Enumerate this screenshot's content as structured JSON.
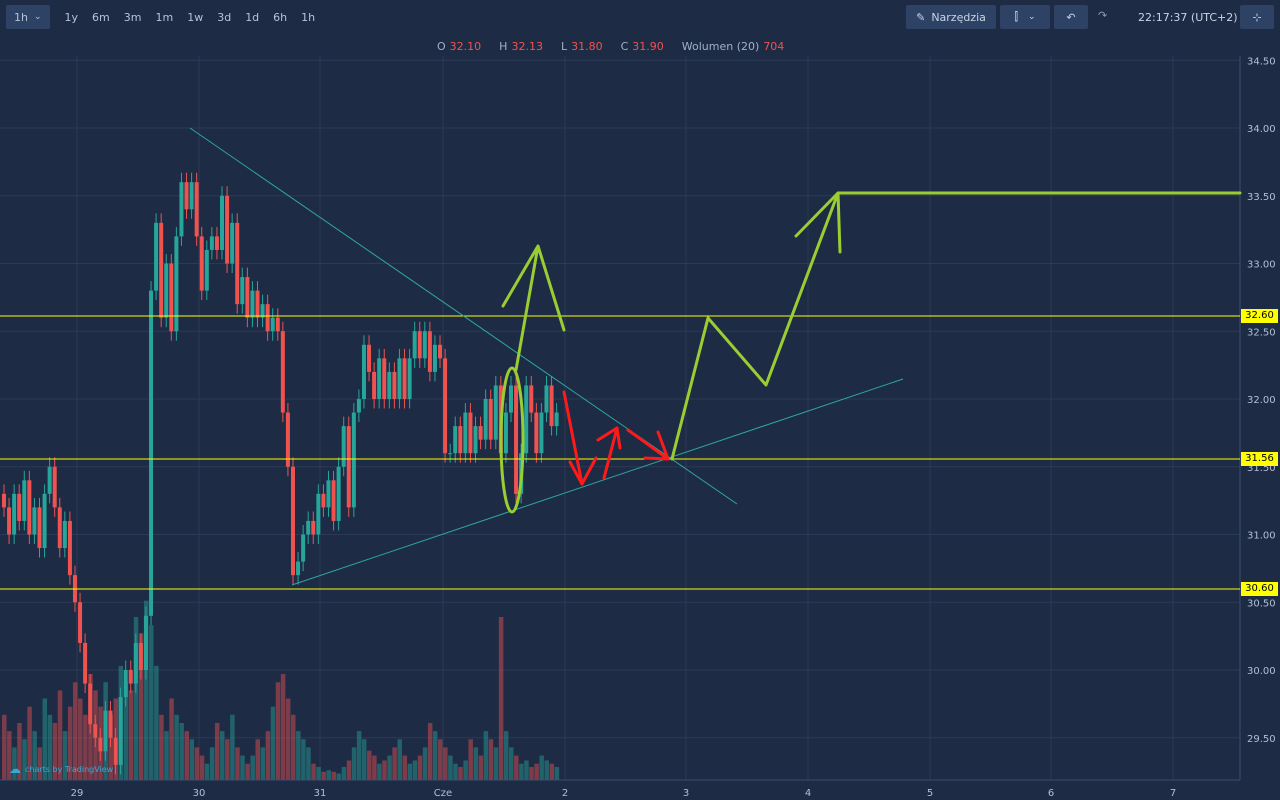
{
  "toolbar": {
    "interval": "1h",
    "ranges": [
      "1y",
      "6m",
      "3m",
      "1m",
      "1w",
      "3d",
      "1d",
      "6h",
      "1h"
    ],
    "tools_label": "Narzędzia",
    "clock": "22:17:37",
    "timezone": "(UTC+2)"
  },
  "legend": {
    "o_label": "O",
    "o": "32.10",
    "h_label": "H",
    "h": "32.13",
    "l_label": "L",
    "l": "31.80",
    "c_label": "C",
    "c": "31.90",
    "vol_label": "Wolumen (20)",
    "vol": "704"
  },
  "colors": {
    "up": "#26a69a",
    "down": "#ef5350",
    "background": "#1e2b45",
    "hline": "#ffff00",
    "drawing_green": "#9acd32",
    "drawing_red": "#ff1a1a",
    "trendline": "#2ea6a0"
  },
  "watermark": "charts by TradingView",
  "horizontal_lines": [
    "32.60",
    "31.56",
    "30.60"
  ],
  "chart_data": {
    "type": "candlestick",
    "interval": "1h",
    "y_ticks": [
      "34.50",
      "34.00",
      "33.50",
      "33.00",
      "32.50",
      "32.00",
      "31.50",
      "31.00",
      "30.50",
      "30.00",
      "29.50"
    ],
    "x_ticks": [
      "29",
      "30",
      "31",
      "Cze",
      "2",
      "3",
      "4",
      "5",
      "6",
      "7"
    ],
    "close": [
      31.2,
      31.0,
      31.3,
      31.1,
      31.4,
      31.0,
      31.2,
      30.9,
      31.3,
      31.5,
      31.2,
      30.9,
      31.1,
      30.7,
      30.5,
      30.2,
      29.9,
      29.6,
      29.5,
      29.4,
      29.7,
      29.5,
      29.3,
      29.8,
      30.0,
      29.9,
      30.2,
      30.0,
      30.4,
      32.8,
      33.3,
      32.6,
      33.0,
      32.5,
      33.2,
      33.6,
      33.4,
      33.6,
      33.2,
      32.8,
      33.1,
      33.2,
      33.1,
      33.5,
      33.0,
      33.3,
      32.7,
      32.9,
      32.6,
      32.8,
      32.6,
      32.7,
      32.5,
      32.6,
      32.5,
      31.9,
      31.5,
      30.7,
      30.8,
      31.0,
      31.1,
      31.0,
      31.3,
      31.2,
      31.4,
      31.1,
      31.5,
      31.8,
      31.2,
      31.9,
      32.0,
      32.4,
      32.2,
      32.0,
      32.3,
      32.0,
      32.2,
      32.0,
      32.3,
      32.0,
      32.3,
      32.5,
      32.3,
      32.5,
      32.2,
      32.4,
      32.3,
      31.6,
      31.6,
      31.8,
      31.6,
      31.9,
      31.6,
      31.8,
      31.7,
      32.0,
      31.7,
      32.1,
      31.6,
      31.9,
      32.1,
      31.3,
      31.6,
      32.1,
      31.9,
      31.6,
      31.9,
      32.1,
      31.8,
      31.9
    ],
    "volume": [
      40,
      30,
      20,
      35,
      25,
      45,
      30,
      20,
      50,
      40,
      35,
      55,
      30,
      45,
      60,
      50,
      40,
      65,
      55,
      45,
      60,
      40,
      50,
      70,
      60,
      55,
      100,
      90,
      110,
      95,
      70,
      40,
      30,
      50,
      40,
      35,
      30,
      25,
      20,
      15,
      10,
      20,
      35,
      30,
      25,
      40,
      20,
      15,
      10,
      15,
      25,
      20,
      30,
      45,
      60,
      65,
      50,
      40,
      30,
      25,
      20,
      10,
      8,
      5,
      6,
      5,
      4,
      8,
      12,
      20,
      30,
      25,
      18,
      15,
      10,
      12,
      15,
      20,
      25,
      15,
      10,
      12,
      15,
      20,
      35,
      30,
      25,
      20,
      15,
      10,
      8,
      12,
      25,
      20,
      15,
      30,
      25,
      20,
      100,
      30,
      20,
      15,
      10,
      12,
      8,
      10,
      15,
      12,
      10,
      8
    ]
  }
}
